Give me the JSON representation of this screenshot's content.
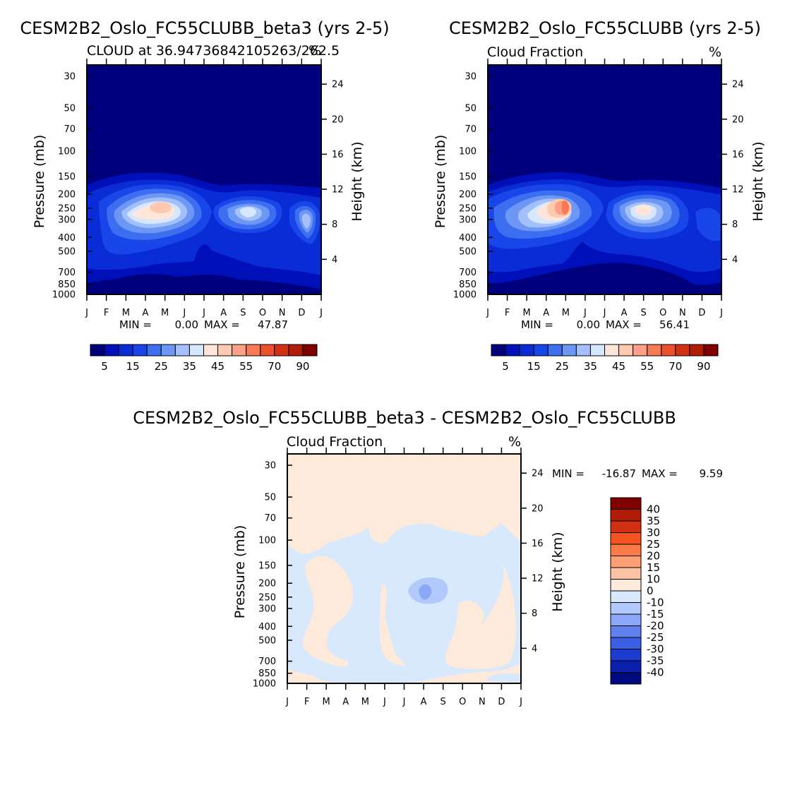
{
  "chart_data": [
    {
      "type": "heatmap",
      "panel": "top-left",
      "title": "CESM2B2_Oslo_FC55CLUBB_beta3 (yrs 2-5)",
      "subtitle_left": "CLOUD at 36.94736842105263/262.5",
      "subtitle_right": "%",
      "xlabel": "",
      "ylabel_left": "Pressure (mb)",
      "ylabel_right": "Height (km)",
      "x_ticks": [
        "J",
        "F",
        "M",
        "A",
        "M",
        "J",
        "J",
        "A",
        "S",
        "O",
        "N",
        "D",
        "J"
      ],
      "y_ticks_pressure": [
        30,
        50,
        70,
        100,
        150,
        200,
        250,
        300,
        400,
        500,
        700,
        850,
        1000
      ],
      "y_ticks_height": [
        24,
        20,
        16,
        12,
        8,
        4
      ],
      "ylim_pressure": [
        1000,
        25
      ],
      "min_label": "MIN =",
      "min_value": "0.00",
      "max_label": "MAX =",
      "max_value": "47.87",
      "maxima": [
        {
          "month": 3.9,
          "pressure": 230,
          "value": 47.87
        },
        {
          "month": 8.1,
          "pressure": 245,
          "value": 35
        },
        {
          "month": 11.1,
          "pressure": 300,
          "value": 30
        }
      ],
      "colorbar": {
        "levels": [
          "5",
          "15",
          "25",
          "35",
          "45",
          "55",
          "70",
          "90"
        ],
        "colors": [
          "#00007f",
          "#0010b8",
          "#0a2cd6",
          "#1846e8",
          "#3d6ef0",
          "#6d97f5",
          "#a3c0fa",
          "#d6e8ff",
          "#ffe6d9",
          "#ffc9b0",
          "#fca187",
          "#f87a55",
          "#ee4f2b",
          "#d23012",
          "#b01c08",
          "#7f0000"
        ]
      }
    },
    {
      "type": "heatmap",
      "panel": "top-right",
      "title": "CESM2B2_Oslo_FC55CLUBB (yrs 2-5)",
      "subtitle_left": "Cloud Fraction",
      "subtitle_right": "%",
      "ylabel_left": "Pressure (mb)",
      "ylabel_right": "Height (km)",
      "x_ticks": [
        "J",
        "F",
        "M",
        "A",
        "M",
        "J",
        "J",
        "A",
        "S",
        "O",
        "N",
        "D",
        "J"
      ],
      "y_ticks_pressure": [
        30,
        50,
        70,
        100,
        150,
        200,
        250,
        300,
        400,
        500,
        700,
        850,
        1000
      ],
      "y_ticks_height": [
        24,
        20,
        16,
        12,
        8,
        4
      ],
      "ylim_pressure": [
        1000,
        25
      ],
      "min_label": "MIN =",
      "min_value": "0.00",
      "max_label": "MAX =",
      "max_value": "56.41",
      "maxima": [
        {
          "month": 4.0,
          "pressure": 240,
          "value": 56.41
        },
        {
          "month": 8.0,
          "pressure": 245,
          "value": 47
        },
        {
          "month": 0.8,
          "pressure": 320,
          "value": 28
        }
      ],
      "colorbar": {
        "levels": [
          "5",
          "15",
          "25",
          "35",
          "45",
          "55",
          "70",
          "90"
        ],
        "colors": [
          "#00007f",
          "#0010b8",
          "#0a2cd6",
          "#1846e8",
          "#3d6ef0",
          "#6d97f5",
          "#a3c0fa",
          "#d6e8ff",
          "#ffe6d9",
          "#ffc9b0",
          "#fca187",
          "#f87a55",
          "#ee4f2b",
          "#d23012",
          "#b01c08",
          "#7f0000"
        ]
      }
    },
    {
      "type": "heatmap",
      "panel": "bottom",
      "title": "CESM2B2_Oslo_FC55CLUBB_beta3 - CESM2B2_Oslo_FC55CLUBB",
      "subtitle_left": "Cloud Fraction",
      "subtitle_right": "%",
      "ylabel_left": "Pressure (mb)",
      "ylabel_right": "Height (km)",
      "x_ticks": [
        "J",
        "F",
        "M",
        "A",
        "M",
        "J",
        "J",
        "A",
        "S",
        "O",
        "N",
        "D",
        "J"
      ],
      "y_ticks_pressure": [
        30,
        50,
        70,
        100,
        150,
        200,
        250,
        300,
        400,
        500,
        700,
        850,
        1000
      ],
      "y_ticks_height": [
        24,
        20,
        16,
        12,
        8,
        4
      ],
      "ylim_pressure": [
        1000,
        25
      ],
      "min_label": "MIN =",
      "min_value": "-16.87",
      "max_label": "MAX =",
      "max_value": "9.59",
      "anomalies": [
        {
          "month": 7.0,
          "pressure": 215,
          "value": -16.87
        }
      ],
      "colorbar": {
        "levels": [
          "40",
          "35",
          "30",
          "25",
          "20",
          "15",
          "10",
          "0",
          "-10",
          "-15",
          "-20",
          "-25",
          "-30",
          "-35",
          "-40"
        ],
        "colors": [
          "#7f0000",
          "#b01c08",
          "#d23012",
          "#f5531f",
          "#fb7a45",
          "#fc9f74",
          "#fdc3a4",
          "#feeada",
          "#d8e9fd",
          "#b2cafb",
          "#8aa8f6",
          "#6082ef",
          "#3b5ee4",
          "#1c3cd0",
          "#0c20ae",
          "#000a80"
        ]
      }
    }
  ]
}
